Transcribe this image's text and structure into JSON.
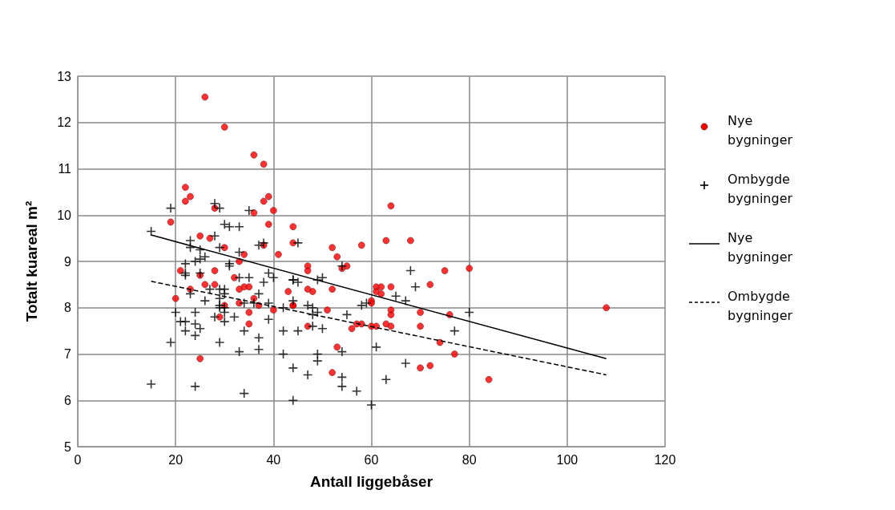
{
  "chart_data": {
    "type": "scatter",
    "xlabel": "Antall liggebåser",
    "ylabel": "Totalt kuareal m²",
    "xlim": [
      0,
      120
    ],
    "xticks": [
      0,
      20,
      40,
      60,
      80,
      100,
      120
    ],
    "ylim": [
      5,
      13
    ],
    "yticks": [
      5,
      6,
      7,
      8,
      9,
      10,
      11,
      12,
      13
    ],
    "grid": true,
    "legend": "right",
    "series": [
      {
        "name": "Nye bygninger",
        "marker": "circle",
        "color": "#ff0000",
        "x": [
          26,
          30,
          36,
          38,
          22,
          22,
          23,
          38,
          39,
          28,
          36,
          40,
          64,
          19,
          39,
          44,
          44,
          25,
          27,
          30,
          38,
          41,
          34,
          33,
          21,
          25,
          28,
          52,
          53,
          58,
          63,
          68,
          75,
          80,
          47,
          47,
          55,
          54,
          72,
          32,
          26,
          28,
          23,
          33,
          34,
          35,
          20,
          36,
          33,
          30,
          37,
          40,
          43,
          44,
          35,
          29,
          35,
          25,
          61,
          61,
          62,
          64,
          62,
          60,
          60,
          47,
          48,
          52,
          44,
          51,
          64,
          64,
          70,
          76,
          47,
          56,
          57,
          58,
          60,
          61,
          63,
          64,
          70,
          74,
          77,
          53,
          52,
          70,
          72,
          84,
          108
        ],
        "values": [
          12.55,
          11.9,
          11.3,
          11.1,
          10.6,
          10.3,
          10.4,
          10.3,
          10.4,
          10.15,
          10.05,
          10.1,
          10.2,
          9.85,
          9.8,
          9.75,
          9.4,
          9.55,
          9.5,
          9.3,
          9.35,
          9.15,
          9.15,
          9.0,
          8.8,
          8.7,
          8.8,
          9.3,
          9.1,
          9.35,
          9.45,
          9.45,
          8.8,
          8.85,
          8.9,
          8.8,
          8.9,
          8.85,
          8.5,
          8.65,
          8.5,
          8.5,
          8.4,
          8.4,
          8.45,
          8.45,
          8.2,
          8.2,
          8.1,
          8.05,
          8.05,
          7.95,
          8.35,
          8.05,
          7.9,
          7.8,
          7.65,
          6.9,
          8.45,
          8.35,
          8.45,
          8.45,
          8.3,
          8.15,
          8.1,
          8.4,
          8.35,
          8.4,
          8.05,
          7.95,
          7.95,
          7.85,
          7.9,
          7.85,
          7.6,
          7.55,
          7.65,
          7.65,
          7.6,
          7.6,
          7.65,
          7.6,
          7.6,
          7.25,
          7.0,
          7.15,
          6.6,
          6.7,
          6.75,
          6.45,
          8.0
        ]
      },
      {
        "name": "Ombygde bygninger",
        "marker": "cross",
        "color": "#000000",
        "x": [
          19,
          28,
          29,
          35,
          15,
          30,
          31,
          33,
          23,
          28,
          23,
          25,
          29,
          33,
          37,
          38,
          25,
          26,
          24,
          22,
          31,
          22,
          25,
          33,
          35,
          39,
          40,
          22,
          31,
          38,
          44,
          23,
          27,
          29,
          30,
          29,
          30,
          26,
          37,
          34,
          36,
          39,
          29,
          29,
          30,
          30,
          42,
          44,
          20,
          24,
          24,
          21,
          22,
          25,
          22,
          24,
          28,
          30,
          32,
          34,
          37,
          37,
          39,
          42,
          33,
          19,
          29,
          42,
          44,
          15,
          24,
          34,
          44,
          45,
          49,
          50,
          47,
          48,
          48,
          49,
          45,
          48,
          50,
          55,
          58,
          59,
          65,
          67,
          69,
          80,
          77,
          54,
          49,
          49,
          47,
          54,
          54,
          57,
          61,
          63,
          60,
          67,
          68,
          54,
          45,
          44
        ],
        "values": [
          10.15,
          10.25,
          10.15,
          10.1,
          9.65,
          9.8,
          9.75,
          9.75,
          9.45,
          9.55,
          9.3,
          9.25,
          9.3,
          9.2,
          9.35,
          9.4,
          9.05,
          9.1,
          9.0,
          8.95,
          8.95,
          8.75,
          8.75,
          8.65,
          8.65,
          8.75,
          8.65,
          8.7,
          8.9,
          8.55,
          8.6,
          8.3,
          8.4,
          8.4,
          8.4,
          8.2,
          8.3,
          8.15,
          8.3,
          8.1,
          8.1,
          8.1,
          8.05,
          8.0,
          8.0,
          7.9,
          8.0,
          8.15,
          7.9,
          7.9,
          7.65,
          7.7,
          7.7,
          7.55,
          7.5,
          7.4,
          7.8,
          7.7,
          7.8,
          7.5,
          7.35,
          7.1,
          7.75,
          7.5,
          7.05,
          7.25,
          7.25,
          7.0,
          6.7,
          6.35,
          6.3,
          6.15,
          6.0,
          8.55,
          8.6,
          8.65,
          8.05,
          8.0,
          7.85,
          7.9,
          7.5,
          7.6,
          7.55,
          7.85,
          8.05,
          8.1,
          8.25,
          8.15,
          8.45,
          7.9,
          7.5,
          7.05,
          7.0,
          6.85,
          6.55,
          6.5,
          6.3,
          6.2,
          7.15,
          6.45,
          5.9,
          6.8,
          8.8,
          8.9,
          9.4,
          8.6
        ]
      },
      {
        "name": "Nye bygninger",
        "type": "line",
        "marker": "none",
        "line_style": "solid",
        "color": "#000000",
        "x": [
          15,
          108
        ],
        "values": [
          9.57,
          6.9
        ]
      },
      {
        "name": "Ombygde bygninger",
        "type": "line",
        "marker": "none",
        "line_style": "dashed",
        "color": "#000000",
        "x": [
          15,
          108
        ],
        "values": [
          8.57,
          6.55
        ]
      }
    ]
  }
}
